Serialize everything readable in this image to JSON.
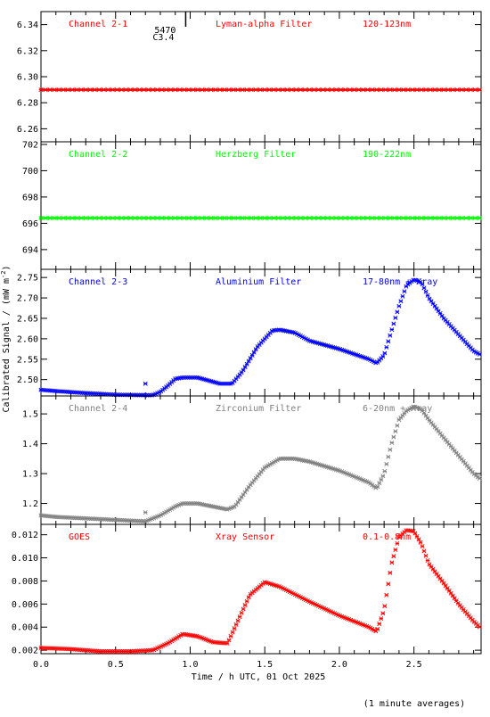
{
  "figure": {
    "ylabel": "Calibrated Signal / (mW m",
    "ylabel_sup": "-2",
    "ylabel_end": ")",
    "xlabel": "Time / h UTC, 01 Oct 2025",
    "footnote": "(1 minute averages)",
    "marker_text_1": "5470",
    "marker_text_2": "C3.4",
    "marker_x": 0.97,
    "x_ticks": [
      "0.0",
      "0.5",
      "1.0",
      "1.5",
      "2.0",
      "2.5"
    ]
  },
  "chart_data": [
    {
      "type": "scatter",
      "panel_label": "Channel 2-1",
      "filter": "Lyman-alpha Filter",
      "band": "120-123nm",
      "color": "#ff0000",
      "xlim": [
        0,
        2.95
      ],
      "ylim": [
        6.25,
        6.35
      ],
      "y_ticks": [
        6.26,
        6.28,
        6.3,
        6.32,
        6.34
      ],
      "y_tick_labels": [
        "6.26",
        "6.28",
        "6.30",
        "6.32",
        "6.34"
      ],
      "x": [
        0,
        2.95
      ],
      "y": [
        6.29,
        6.29
      ],
      "style": "flat"
    },
    {
      "type": "scatter",
      "panel_label": "Channel 2-2",
      "filter": "Herzberg Filter",
      "band": "190-222nm",
      "color": "#00ff00",
      "xlim": [
        0,
        2.95
      ],
      "ylim": [
        692.5,
        702.2
      ],
      "y_ticks": [
        694,
        696,
        698,
        700,
        702
      ],
      "y_tick_labels": [
        "694",
        "696",
        "698",
        "700",
        "702"
      ],
      "x": [
        0,
        2.95
      ],
      "y": [
        696.4,
        696.4
      ],
      "style": "flat"
    },
    {
      "type": "scatter",
      "panel_label": "Channel 2-3",
      "filter": "Aluminium Filter",
      "band": "17-80nm + Xray",
      "color": "#0000ff",
      "xlim": [
        0,
        2.95
      ],
      "ylim": [
        2.46,
        2.77
      ],
      "y_ticks": [
        2.5,
        2.55,
        2.6,
        2.65,
        2.7,
        2.75
      ],
      "y_tick_labels": [
        "2.50",
        "2.55",
        "2.60",
        "2.65",
        "2.70",
        "2.75"
      ],
      "x": [
        0.0,
        0.1,
        0.3,
        0.5,
        0.7,
        0.75,
        0.8,
        0.85,
        0.9,
        0.95,
        1.05,
        1.1,
        1.2,
        1.28,
        1.35,
        1.45,
        1.55,
        1.6,
        1.7,
        1.8,
        2.0,
        2.2,
        2.25,
        2.3,
        2.35,
        2.4,
        2.45,
        2.5,
        2.55,
        2.6,
        2.7,
        2.8,
        2.9,
        2.95
      ],
      "y": [
        2.475,
        2.472,
        2.467,
        2.463,
        2.462,
        2.462,
        2.47,
        2.485,
        2.502,
        2.505,
        2.505,
        2.5,
        2.49,
        2.49,
        2.52,
        2.58,
        2.62,
        2.622,
        2.615,
        2.595,
        2.575,
        2.55,
        2.54,
        2.56,
        2.62,
        2.68,
        2.73,
        2.745,
        2.738,
        2.7,
        2.65,
        2.61,
        2.57,
        2.56
      ],
      "extra_points": {
        "x": [
          0.7
        ],
        "y": [
          2.49
        ]
      }
    },
    {
      "type": "scatter",
      "panel_label": "Channel 2-4",
      "filter": "Zirconium Filter",
      "band": "6-20nm + Xray",
      "color": "#808080",
      "xlim": [
        0,
        2.95
      ],
      "ylim": [
        1.13,
        1.56
      ],
      "y_ticks": [
        1.2,
        1.3,
        1.4,
        1.5
      ],
      "y_tick_labels": [
        "1.2",
        "1.3",
        "1.4",
        "1.5"
      ],
      "x": [
        0.0,
        0.1,
        0.3,
        0.5,
        0.7,
        0.8,
        0.9,
        0.95,
        1.05,
        1.15,
        1.25,
        1.3,
        1.4,
        1.5,
        1.6,
        1.7,
        1.8,
        2.0,
        2.2,
        2.25,
        2.3,
        2.35,
        2.4,
        2.45,
        2.5,
        2.55,
        2.6,
        2.7,
        2.8,
        2.9,
        2.95
      ],
      "y": [
        1.16,
        1.155,
        1.15,
        1.145,
        1.14,
        1.16,
        1.19,
        1.2,
        1.2,
        1.19,
        1.18,
        1.19,
        1.26,
        1.32,
        1.35,
        1.35,
        1.34,
        1.31,
        1.27,
        1.25,
        1.3,
        1.4,
        1.48,
        1.51,
        1.525,
        1.515,
        1.48,
        1.42,
        1.36,
        1.3,
        1.28
      ],
      "extra_points": {
        "x": [
          0.7
        ],
        "y": [
          1.17
        ]
      }
    },
    {
      "type": "scatter",
      "panel_label": "GOES",
      "filter": "Xray Sensor",
      "band": "0.1-0.8nm",
      "color": "#ff0000",
      "xlim": [
        0,
        2.95
      ],
      "ylim": [
        0.0017,
        0.0129
      ],
      "y_ticks": [
        0.002,
        0.004,
        0.006,
        0.008,
        0.01,
        0.012
      ],
      "y_tick_labels": [
        "0.002",
        "0.004",
        "0.006",
        "0.008",
        "0.010",
        "0.012"
      ],
      "x": [
        0.0,
        0.2,
        0.4,
        0.6,
        0.75,
        0.85,
        0.95,
        1.05,
        1.15,
        1.25,
        1.3,
        1.4,
        1.5,
        1.6,
        1.8,
        2.0,
        2.2,
        2.25,
        2.3,
        2.35,
        2.4,
        2.45,
        2.5,
        2.55,
        2.6,
        2.7,
        2.8,
        2.9,
        2.95
      ],
      "y": [
        0.0022,
        0.0021,
        0.0019,
        0.0019,
        0.002,
        0.0026,
        0.0034,
        0.0032,
        0.0027,
        0.0026,
        0.004,
        0.0068,
        0.0079,
        0.0075,
        0.0062,
        0.005,
        0.004,
        0.0036,
        0.0055,
        0.0095,
        0.0118,
        0.0124,
        0.0123,
        0.0112,
        0.0095,
        0.0078,
        0.006,
        0.0045,
        0.0039
      ]
    }
  ]
}
